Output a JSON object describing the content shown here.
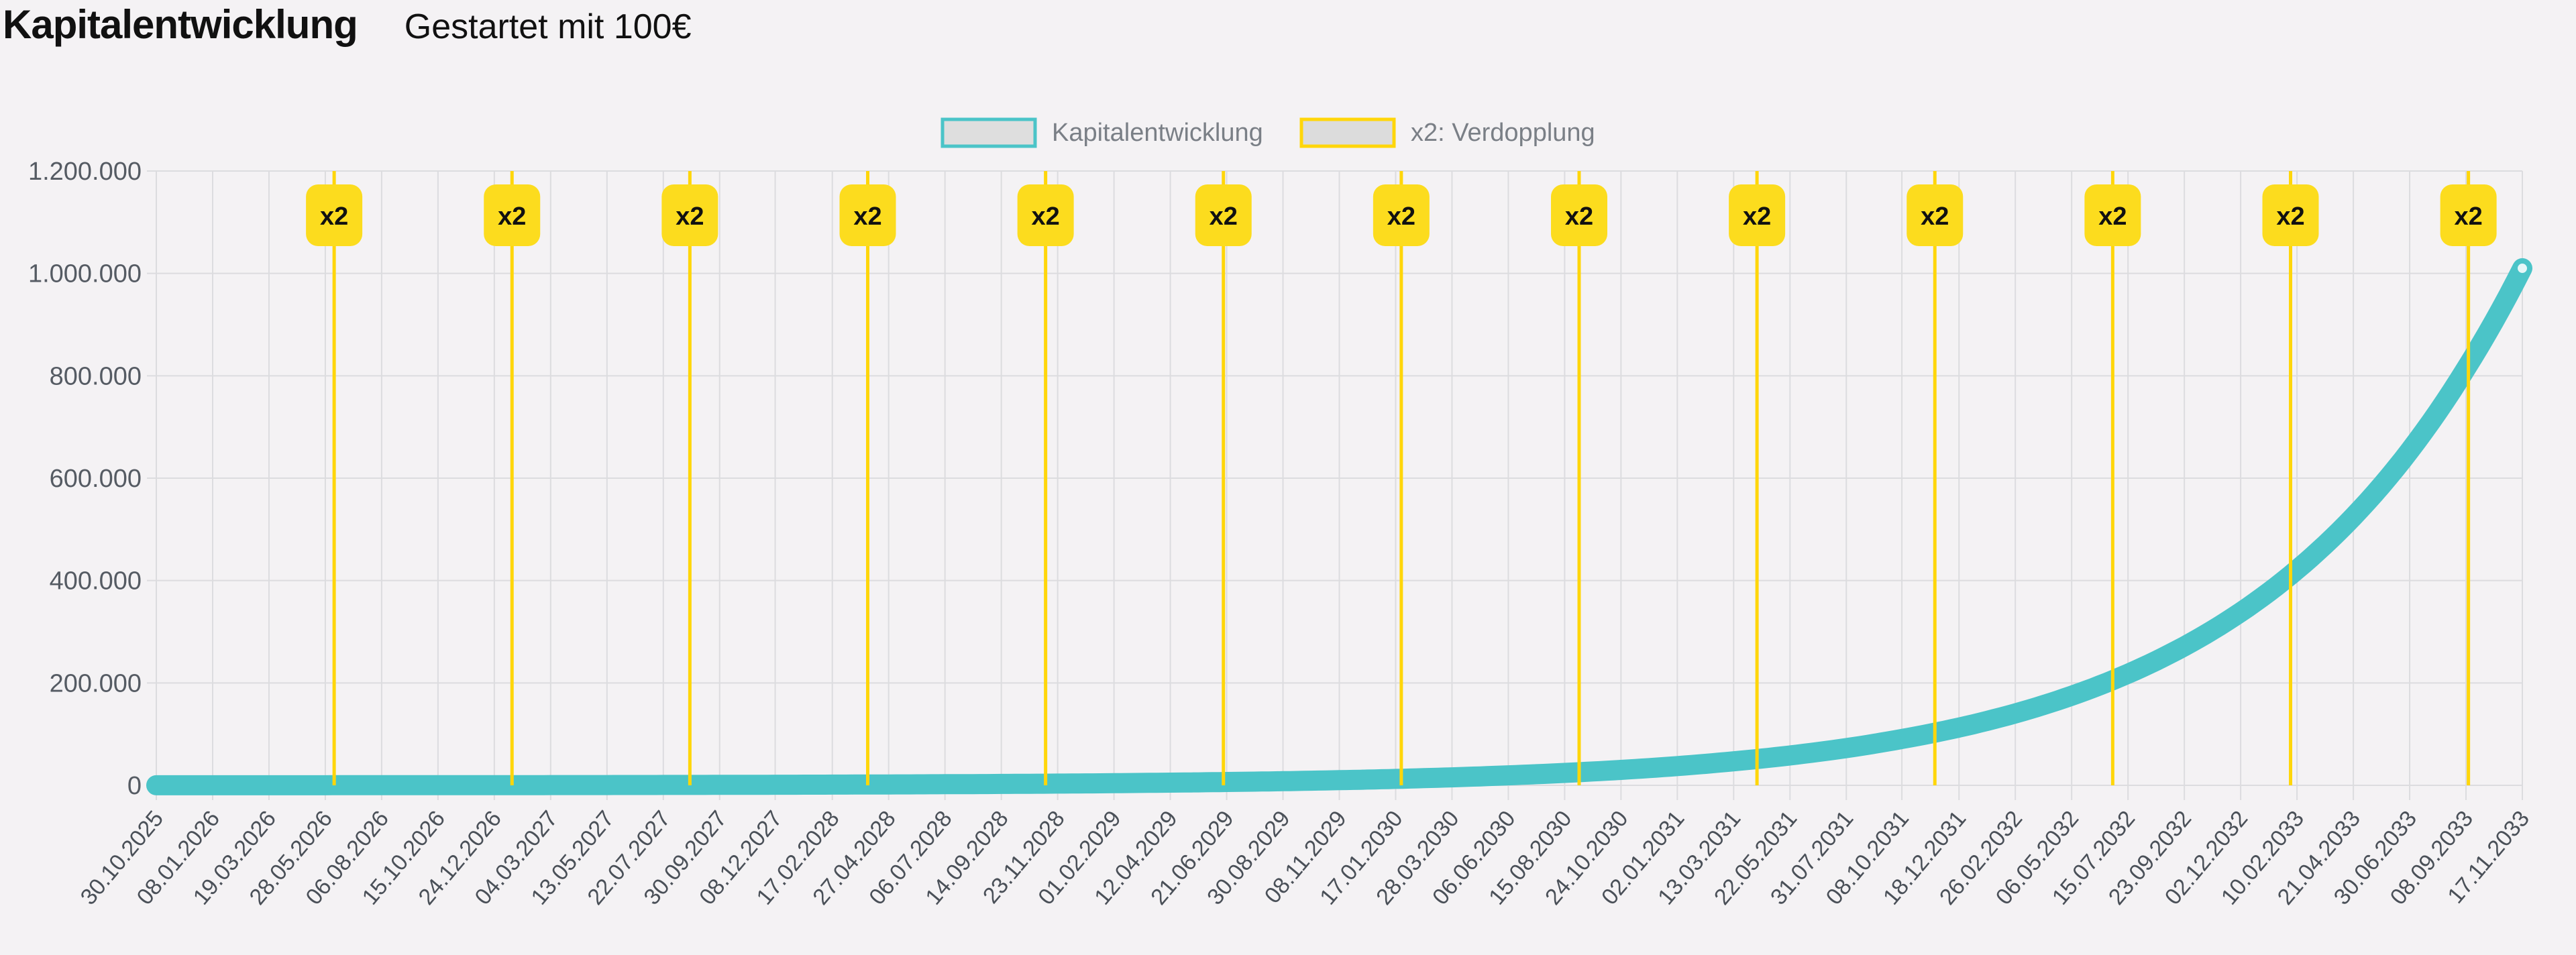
{
  "header": {
    "title": "Kapitalentwicklung",
    "subtitle": "Gestartet mit 100€"
  },
  "chart_data": {
    "type": "line",
    "title": "",
    "xlabel": "",
    "ylabel": "",
    "ylim": [
      0,
      1200000
    ],
    "y_ticks": [
      0,
      200000,
      400000,
      600000,
      800000,
      1000000,
      1200000
    ],
    "y_tick_labels": [
      "0",
      "200.000",
      "400.000",
      "600.000",
      "800.000",
      "1.000.000",
      "1.200.000"
    ],
    "grid": true,
    "legend_placement": "top-center",
    "legend": [
      {
        "label": "Kapitalentwicklung",
        "color": "#4bc4c8"
      },
      {
        "label": "x2: Verdopplung",
        "color": "#ffd60a"
      }
    ],
    "x_tick_labels": [
      "30.10.2025",
      "08.01.2026",
      "19.03.2026",
      "28.05.2026",
      "06.08.2026",
      "15.10.2026",
      "24.12.2026",
      "04.03.2027",
      "13.05.2027",
      "22.07.2027",
      "30.09.2027",
      "08.12.2027",
      "17.02.2028",
      "27.04.2028",
      "06.07.2028",
      "14.09.2028",
      "23.11.2028",
      "01.02.2029",
      "12.04.2029",
      "21.06.2029",
      "30.08.2029",
      "08.11.2029",
      "17.01.2030",
      "28.03.2030",
      "06.06.2030",
      "15.08.2030",
      "24.10.2030",
      "02.01.2031",
      "13.03.2031",
      "22.05.2031",
      "31.07.2031",
      "08.10.2031",
      "18.12.2031",
      "26.02.2032",
      "06.05.2032",
      "15.07.2032",
      "23.09.2032",
      "02.12.2032",
      "10.02.2033",
      "21.04.2033",
      "30.06.2033",
      "08.09.2033",
      "17.11.2033"
    ],
    "series": [
      {
        "name": "Kapitalentwicklung",
        "color": "#4bc4c8",
        "x": [
          "30.10.2025",
          "08.01.2026",
          "19.03.2026",
          "28.05.2026",
          "06.08.2026",
          "15.10.2026",
          "24.12.2026",
          "04.03.2027",
          "13.05.2027",
          "22.07.2027",
          "30.09.2027",
          "08.12.2027",
          "17.02.2028",
          "27.04.2028",
          "06.07.2028",
          "14.09.2028",
          "23.11.2028",
          "01.02.2029",
          "12.04.2029",
          "21.06.2029",
          "30.08.2029",
          "08.11.2029",
          "17.01.2030",
          "28.03.2030",
          "06.06.2030",
          "15.08.2030",
          "24.10.2030",
          "02.01.2031",
          "13.03.2031",
          "22.05.2031",
          "31.07.2031",
          "08.10.2031",
          "18.12.2031",
          "26.02.2032",
          "06.05.2032",
          "15.07.2032",
          "23.09.2032",
          "02.12.2032",
          "10.02.2033",
          "21.04.2033",
          "30.06.2033",
          "08.09.2033",
          "17.11.2033"
        ],
        "values": [
          100,
          125,
          155,
          193,
          241,
          300,
          373,
          465,
          579,
          722,
          899,
          1120,
          1395,
          1737,
          2164,
          2696,
          3358,
          4183,
          5210,
          6490,
          8084,
          10070,
          12543,
          15624,
          19461,
          24241,
          30195,
          37611,
          46849,
          58356,
          72689,
          90543,
          112782,
          140482,
          174987,
          217966,
          271502,
          338186,
          421248,
          524712,
          653587,
          814116,
          1010000
        ]
      }
    ],
    "annotations": {
      "label": "x2",
      "color": "#ffd60a",
      "dates": [
        "08.06.2026",
        "15.01.2027",
        "24.08.2027",
        "01.04.2028",
        "08.11.2028",
        "17.06.2029",
        "24.01.2030",
        "02.09.2030",
        "11.04.2031",
        "18.11.2031",
        "26.06.2032",
        "02.02.2033",
        "11.09.2033"
      ]
    }
  }
}
